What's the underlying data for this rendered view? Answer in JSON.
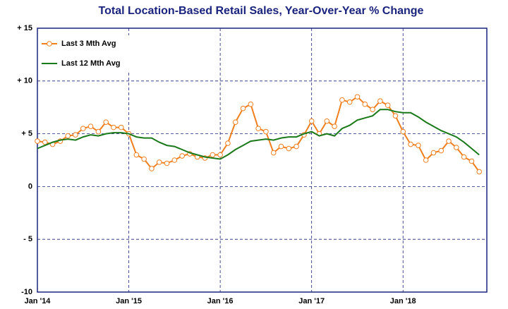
{
  "chart_data": {
    "type": "line",
    "title": "Total Location-Based Retail Sales, Year-Over-Year % Change",
    "categories": [
      "Jan '14",
      null,
      null,
      null,
      null,
      null,
      null,
      null,
      null,
      null,
      null,
      null,
      "Jan '15",
      null,
      null,
      null,
      null,
      null,
      null,
      null,
      null,
      null,
      null,
      null,
      "Jan '16",
      null,
      null,
      null,
      null,
      null,
      null,
      null,
      null,
      null,
      null,
      null,
      "Jan '17",
      null,
      null,
      null,
      null,
      null,
      null,
      null,
      null,
      null,
      null,
      null,
      "Jan '18",
      null,
      null,
      null,
      null,
      null,
      null,
      null,
      null,
      null,
      null
    ],
    "series": [
      {
        "name": "Last 3 Mth Avg",
        "color": "#f07f1e",
        "marker": "circle",
        "values": [
          4.3,
          4.2,
          4.0,
          4.3,
          4.8,
          4.9,
          5.5,
          5.7,
          5.2,
          6.1,
          5.6,
          5.6,
          5.0,
          3.0,
          2.6,
          1.7,
          2.3,
          2.2,
          2.5,
          2.9,
          3.1,
          2.8,
          2.7,
          3.0,
          3.0,
          4.1,
          6.1,
          7.4,
          7.8,
          5.5,
          5.2,
          3.2,
          3.8,
          3.6,
          3.8,
          4.9,
          6.2,
          5.0,
          6.2,
          5.7,
          8.2,
          8.0,
          8.5,
          7.8,
          7.3,
          8.1,
          7.7,
          6.7,
          5.2,
          4.0,
          3.9,
          2.5,
          3.2,
          3.4,
          4.3,
          3.7,
          2.8,
          2.4,
          1.4
        ]
      },
      {
        "name": "Last 12 Mth Avg",
        "color": "#1a7a1a",
        "values": [
          3.6,
          3.9,
          4.2,
          4.4,
          4.5,
          4.4,
          4.7,
          4.9,
          4.8,
          5.0,
          5.1,
          5.1,
          5.0,
          4.7,
          4.6,
          4.6,
          4.2,
          3.9,
          3.8,
          3.5,
          3.2,
          3.0,
          2.8,
          2.7,
          2.6,
          3.0,
          3.5,
          3.9,
          4.3,
          4.4,
          4.5,
          4.4,
          4.6,
          4.7,
          4.7,
          5.0,
          5.2,
          4.8,
          5.0,
          4.8,
          5.5,
          5.8,
          6.3,
          6.5,
          6.7,
          7.3,
          7.3,
          7.1,
          7.0,
          7.0,
          6.6,
          6.1,
          5.7,
          5.3,
          5.0,
          4.7,
          4.2,
          3.6,
          3.0
        ]
      }
    ],
    "ylim": [
      -10,
      15
    ],
    "yticks": [
      {
        "value": -10,
        "label": "-10"
      },
      {
        "value": -5,
        "label": "- 5"
      },
      0,
      {
        "value": 5,
        "label": "+ 5"
      },
      {
        "value": 10,
        "label": "+ 10"
      },
      {
        "value": 15,
        "label": "+ 15"
      }
    ],
    "grid": true,
    "legend": "top-left"
  }
}
